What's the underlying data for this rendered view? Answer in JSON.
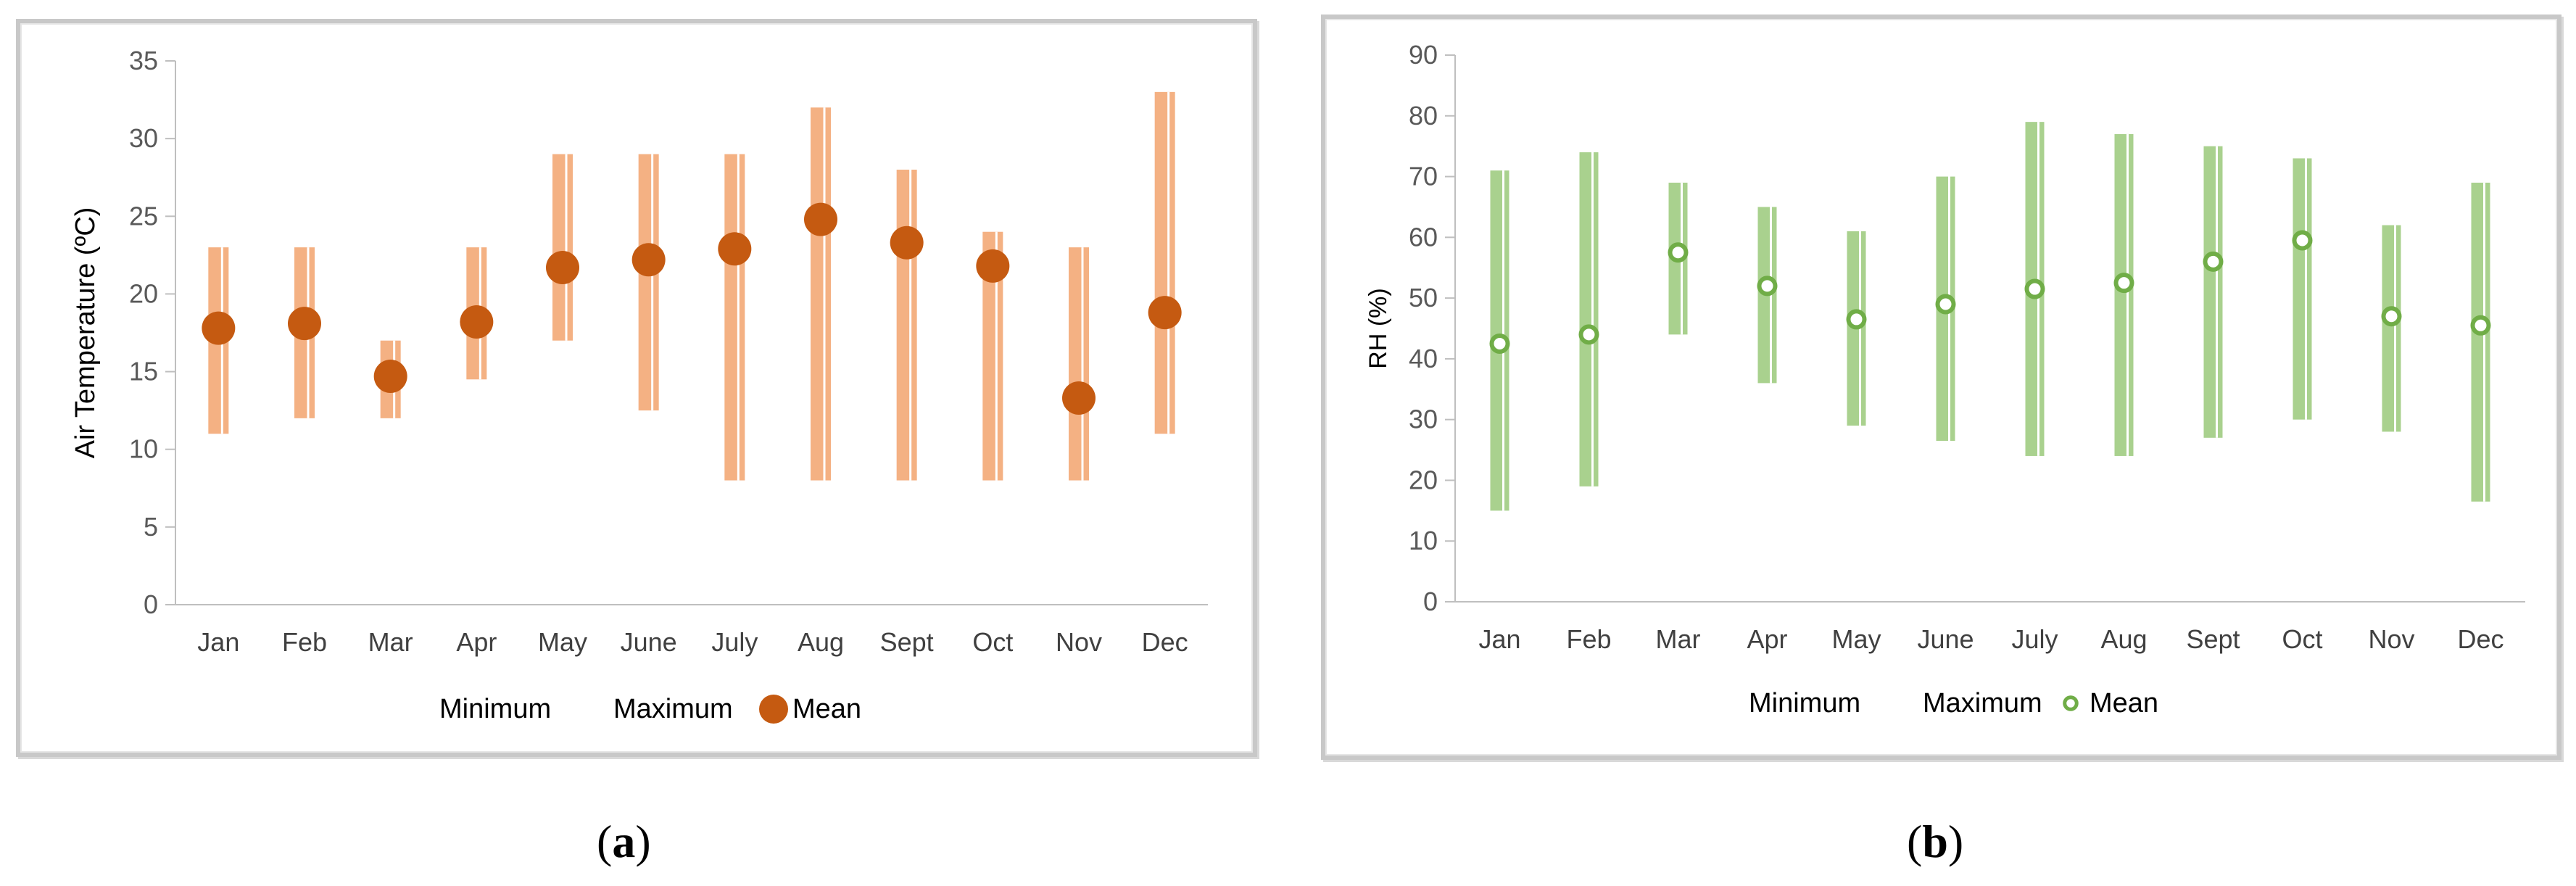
{
  "chart_data": [
    {
      "type": "error-bar",
      "panel_label": "a",
      "categories": [
        "Jan",
        "Feb",
        "Mar",
        "Apr",
        "May",
        "June",
        "July",
        "Aug",
        "Sept",
        "Oct",
        "Nov",
        "Dec"
      ],
      "series": [
        {
          "name": "Minimum",
          "values": [
            11,
            12,
            12,
            14.5,
            17,
            12.5,
            8,
            8,
            8,
            8,
            8,
            11
          ]
        },
        {
          "name": "Maximum",
          "values": [
            23,
            23,
            17,
            23,
            29,
            29,
            29,
            32,
            28,
            24,
            23,
            33
          ]
        },
        {
          "name": "Mean",
          "values": [
            17.8,
            18.1,
            14.7,
            18.2,
            21.7,
            22.2,
            22.9,
            24.8,
            23.3,
            21.8,
            13.3,
            18.8
          ]
        }
      ],
      "ylabel": "Air Temperature (ºC)",
      "ylim": [
        0,
        35
      ],
      "yticks": [
        0,
        5,
        10,
        15,
        20,
        25,
        30,
        35
      ],
      "legend_position": "bottom",
      "colors": {
        "range": "#f4b183",
        "mean": "#c55a11"
      }
    },
    {
      "type": "error-bar",
      "panel_label": "b",
      "categories": [
        "Jan",
        "Feb",
        "Mar",
        "Apr",
        "May",
        "June",
        "July",
        "Aug",
        "Sept",
        "Oct",
        "Nov",
        "Dec"
      ],
      "series": [
        {
          "name": "Minimum",
          "values": [
            15,
            19,
            44,
            36,
            29,
            26.5,
            24,
            24,
            27,
            30,
            28,
            16.5
          ]
        },
        {
          "name": "Maximum",
          "values": [
            71,
            74,
            69,
            65,
            61,
            70,
            79,
            77,
            75,
            73,
            62,
            69
          ]
        },
        {
          "name": "Mean",
          "values": [
            42.5,
            44,
            57.5,
            52,
            46.5,
            49,
            51.5,
            52.5,
            56,
            59.5,
            47,
            45.5
          ]
        }
      ],
      "ylabel": "RH (%)",
      "ylim": [
        0,
        90
      ],
      "yticks": [
        0,
        10,
        20,
        30,
        40,
        50,
        60,
        70,
        80,
        90
      ],
      "legend_position": "bottom",
      "colors": {
        "range": "#a9d18e",
        "mean": "#70ad47"
      }
    }
  ]
}
